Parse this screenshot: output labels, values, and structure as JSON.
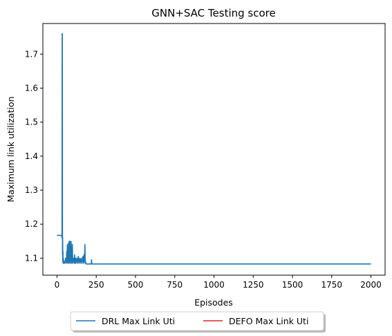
{
  "chart_data": {
    "type": "line",
    "title": "GNN+SAC Testing score",
    "xlabel": "Episodes",
    "ylabel": "Maximum link utilization",
    "xlim": [
      -90,
      2090
    ],
    "ylim": [
      1.05,
      1.79
    ],
    "x_ticks": [
      0,
      250,
      500,
      750,
      1000,
      1250,
      1500,
      1750,
      2000
    ],
    "x_tick_labels": [
      "0",
      "250",
      "500",
      "750",
      "1000",
      "1250",
      "1500",
      "1750",
      "2000"
    ],
    "y_ticks": [
      1.1,
      1.2,
      1.3,
      1.4,
      1.5,
      1.6,
      1.7
    ],
    "y_tick_labels": [
      "1.1",
      "1.2",
      "1.3",
      "1.4",
      "1.5",
      "1.6",
      "1.7"
    ],
    "grid": false,
    "legend_position": "below-center",
    "series": [
      {
        "name": "DRL Max Link Uti",
        "color": "#1f77b4",
        "x": [
          0,
          5,
          10,
          15,
          20,
          25,
          28,
          30,
          32,
          33,
          34,
          35,
          36,
          37,
          38,
          39,
          40,
          42,
          44,
          46,
          48,
          50,
          55,
          60,
          62,
          64,
          66,
          68,
          70,
          72,
          74,
          76,
          78,
          80,
          82,
          84,
          86,
          88,
          90,
          92,
          94,
          96,
          98,
          100,
          105,
          110,
          112,
          115,
          118,
          120,
          125,
          130,
          135,
          140,
          145,
          150,
          155,
          160,
          165,
          170,
          172,
          175,
          178,
          180,
          182,
          185,
          190,
          200,
          210,
          218,
          220,
          222,
          225,
          230,
          300,
          500,
          1000,
          1500,
          2000
        ],
        "values": [
          1.167,
          1.167,
          1.167,
          1.167,
          1.167,
          1.167,
          1.167,
          1.167,
          1.16,
          1.76,
          1.76,
          1.11,
          1.16,
          1.09,
          1.12,
          1.085,
          1.1,
          1.085,
          1.09,
          1.085,
          1.09,
          1.085,
          1.1,
          1.085,
          1.12,
          1.09,
          1.14,
          1.085,
          1.12,
          1.09,
          1.145,
          1.085,
          1.15,
          1.09,
          1.14,
          1.085,
          1.15,
          1.09,
          1.148,
          1.085,
          1.12,
          1.09,
          1.14,
          1.085,
          1.1,
          1.085,
          1.11,
          1.085,
          1.1,
          1.085,
          1.1,
          1.085,
          1.105,
          1.085,
          1.1,
          1.085,
          1.1,
          1.085,
          1.105,
          1.085,
          1.11,
          1.09,
          1.14,
          1.085,
          1.09,
          1.083,
          1.083,
          1.083,
          1.083,
          1.083,
          1.095,
          1.083,
          1.083,
          1.083,
          1.083,
          1.083,
          1.083,
          1.083,
          1.083
        ]
      },
      {
        "name": "DEFO Max Link Uti",
        "color": "#d62728",
        "x": [],
        "values": []
      }
    ]
  }
}
